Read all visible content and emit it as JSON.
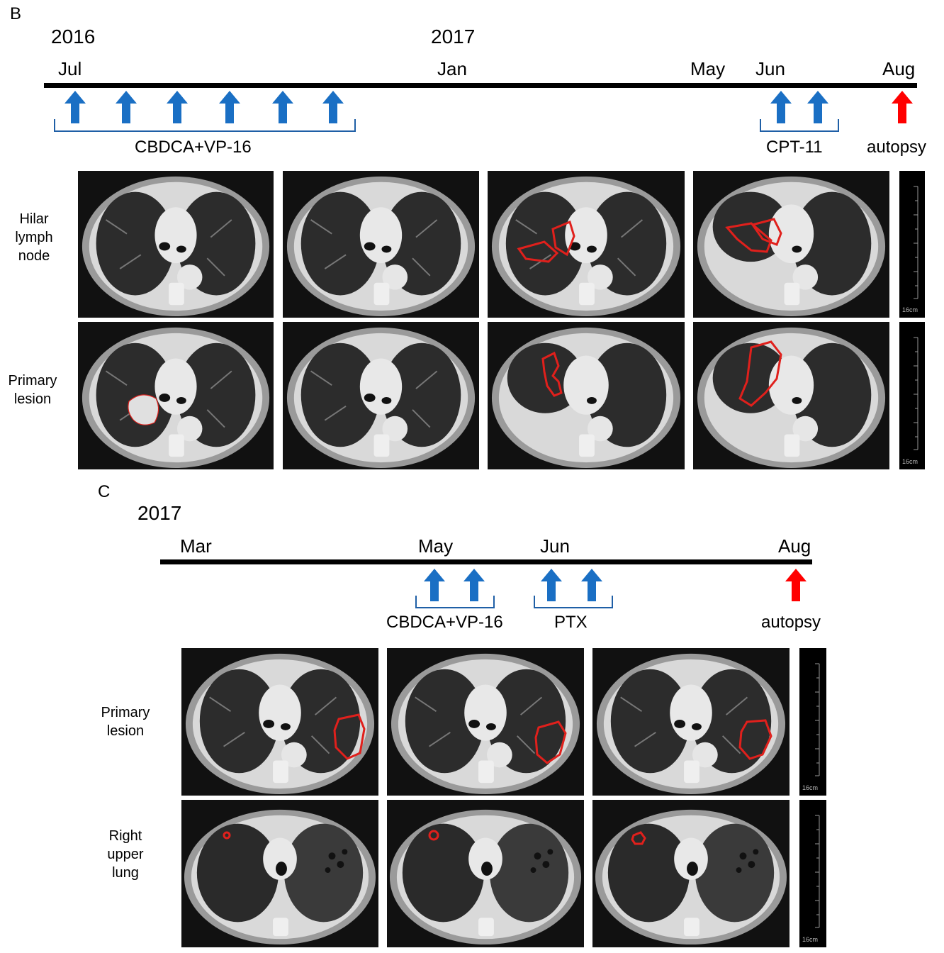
{
  "panel_b": {
    "letter": "B",
    "years": [
      "2016",
      "2017"
    ],
    "months": [
      "Jul",
      "Jan",
      "May",
      "Jun",
      "Aug"
    ],
    "treatments": [
      "CBDCA+VP-16",
      "CPT-11"
    ],
    "autopsy": "autopsy",
    "rows": [
      "Hilar lymph node",
      "Primary lesion"
    ],
    "scale": "16cm"
  },
  "panel_c": {
    "letter": "C",
    "year": "2017",
    "months": [
      "Mar",
      "May",
      "Jun",
      "Aug"
    ],
    "treatments": [
      "CBDCA+VP-16",
      "PTX"
    ],
    "autopsy": "autopsy",
    "rows": [
      "Primary lesion",
      "Right upper lung"
    ],
    "scale": "16cm"
  },
  "colors": {
    "treatment_arrow": "#1a6fc4",
    "autopsy_arrow": "#ff0000",
    "bracket": "#1f5fa6",
    "lesion_outline": "#e0201c"
  },
  "icons": {
    "treatment": "up-arrow-icon",
    "autopsy": "up-arrow-icon"
  }
}
